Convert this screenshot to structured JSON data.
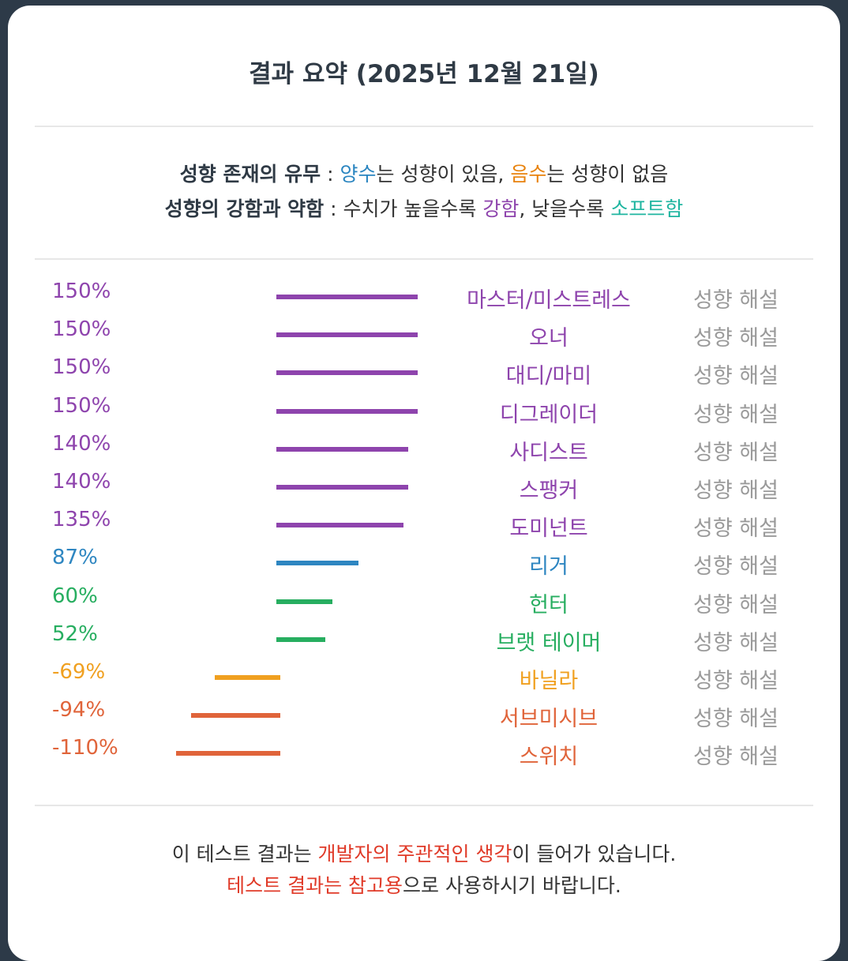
{
  "title": "결과 요약 (2025년 12월 21일)",
  "legend": {
    "line1": {
      "label": "성향 존재의 유무",
      "sep": " : ",
      "part1": "양수",
      "part2": "는 성향이 있음, ",
      "part3": "음수",
      "part4": "는 성향이 없음"
    },
    "line2": {
      "label": "성향의 강함과 약함",
      "sep": " : 수치가 높을수록 ",
      "part1": "강함",
      "part2": ", 낮을수록 ",
      "part3": "소프트함"
    }
  },
  "rows": [
    {
      "pct": "150%",
      "value": 150,
      "name": "마스터/미스트레스",
      "link": "성향 해설",
      "color": "#8e44ad"
    },
    {
      "pct": "150%",
      "value": 150,
      "name": "오너",
      "link": "성향 해설",
      "color": "#8e44ad"
    },
    {
      "pct": "150%",
      "value": 150,
      "name": "대디/마미",
      "link": "성향 해설",
      "color": "#8e44ad"
    },
    {
      "pct": "150%",
      "value": 150,
      "name": "디그레이더",
      "link": "성향 해설",
      "color": "#8e44ad"
    },
    {
      "pct": "140%",
      "value": 140,
      "name": "사디스트",
      "link": "성향 해설",
      "color": "#8e44ad"
    },
    {
      "pct": "140%",
      "value": 140,
      "name": "스팽커",
      "link": "성향 해설",
      "color": "#8e44ad"
    },
    {
      "pct": "135%",
      "value": 135,
      "name": "도미넌트",
      "link": "성향 해설",
      "color": "#8e44ad"
    },
    {
      "pct": "87%",
      "value": 87,
      "name": "리거",
      "link": "성향 해설",
      "color": "#2e86c1"
    },
    {
      "pct": "60%",
      "value": 60,
      "name": "헌터",
      "link": "성향 해설",
      "color": "#27ae60"
    },
    {
      "pct": "52%",
      "value": 52,
      "name": "브랫 테이머",
      "link": "성향 해설",
      "color": "#27ae60"
    },
    {
      "pct": "-69%",
      "value": -69,
      "name": "바닐라",
      "link": "성향 해설",
      "color": "#f0a020"
    },
    {
      "pct": "-94%",
      "value": -94,
      "name": "서브미시브",
      "link": "성향 해설",
      "color": "#e0643a"
    },
    {
      "pct": "-110%",
      "value": -110,
      "name": "스위치",
      "link": "성향 해설",
      "color": "#e0643a"
    }
  ],
  "footer": {
    "line1": {
      "part1": "이 테스트 결과는 ",
      "part2": "개발자의 주관적인 생각",
      "part3": "이 들어가 있습니다."
    },
    "line2": {
      "part1": "테스트 결과는 참고용",
      "part2": "으로 사용하시기 바랍니다."
    }
  }
}
